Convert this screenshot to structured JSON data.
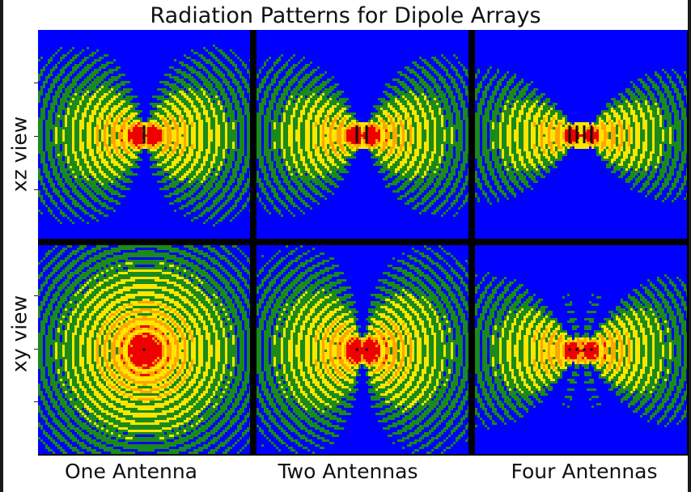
{
  "chart_data": {
    "type": "heatmap",
    "title": "Radiation Patterns for Dipole Arrays",
    "row_labels": [
      "xz view",
      "xy view"
    ],
    "column_labels": [
      "One Antenna",
      "Two Antennas",
      "Four Antennas"
    ],
    "antenna_counts": [
      1,
      2,
      4
    ],
    "colors": {
      "background": "#0000ff",
      "level_1": "#1a8a1a",
      "level_2": "#ffe600",
      "level_3": "#ffa500",
      "level_4": "#ee0000",
      "antenna": "#111111"
    }
  }
}
